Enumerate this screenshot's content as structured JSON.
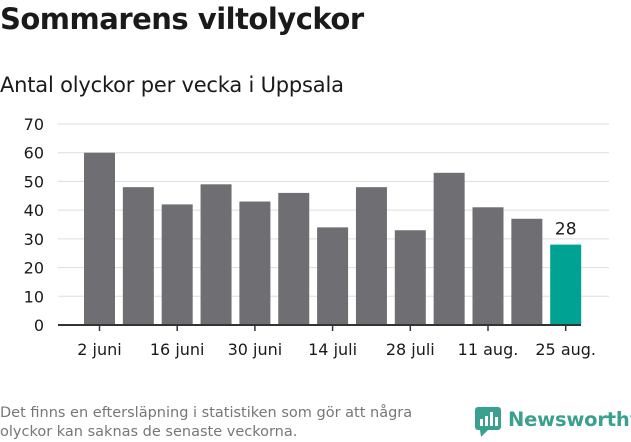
{
  "title": "Sommarens viltolyckor",
  "subtitle": "Antal olyckor per vecka i Uppsala",
  "footnote": "Det finns en eftersläpning i statistiken som gör att några olyckor kan saknas de senaste veckorna.",
  "brand": {
    "name": "Newsworthy",
    "icon": "newsworthy-logo-icon"
  },
  "colors": {
    "bar": "#6f6e73",
    "highlight": "#00a294",
    "grid": "#dddddd",
    "axis": "#333333",
    "brand": "#3aa08f"
  },
  "chart_data": {
    "type": "bar",
    "title": "Sommarens viltolyckor",
    "subtitle": "Antal olyckor per vecka i Uppsala",
    "xlabel": "",
    "ylabel": "",
    "ylim": [
      0,
      70
    ],
    "yticks": [
      0,
      10,
      20,
      30,
      40,
      50,
      60,
      70
    ],
    "grid": true,
    "values": [
      60,
      48,
      42,
      49,
      43,
      46,
      34,
      48,
      33,
      53,
      41,
      37,
      28
    ],
    "x_tick_labels": [
      "2 juni",
      "16 juni",
      "30 juni",
      "14 juli",
      "28 juli",
      "11 aug.",
      "25 aug."
    ],
    "highlight_index": 12,
    "highlight_label": "28"
  }
}
